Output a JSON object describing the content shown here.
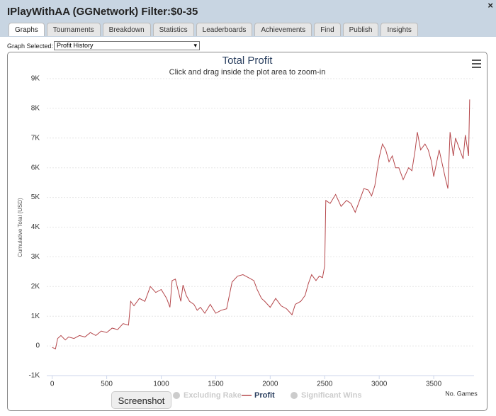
{
  "window": {
    "title": "IPlayWithAA (GGNetwork) Filter:$0-35",
    "close": "×"
  },
  "tabs": [
    "Graphs",
    "Tournaments",
    "Breakdown",
    "Statistics",
    "Leaderboards",
    "Achievements",
    "Find",
    "Publish",
    "Insights"
  ],
  "selected_tab": 0,
  "graph_selector": {
    "label": "Graph Selected:",
    "value": "Profit History"
  },
  "tooltip": "Screenshot",
  "chart_data": {
    "type": "line",
    "title": "Total Profit",
    "subtitle": "Click and drag inside the plot area to zoom-in",
    "y_label": "Cumulative Total (USD)",
    "x_label": "No. Games",
    "xlim": [
      -50,
      3870
    ],
    "ylim": [
      -1000,
      9000
    ],
    "xticks": [
      0,
      500,
      1000,
      1500,
      2000,
      2500,
      3000,
      3500
    ],
    "yticks": [
      {
        "value": -1000,
        "label": "-1K"
      },
      0,
      {
        "value": 1000,
        "label": "1K"
      },
      {
        "value": 2000,
        "label": "2K"
      },
      {
        "value": 3000,
        "label": "3K"
      },
      {
        "value": 4000,
        "label": "4K"
      },
      {
        "value": 5000,
        "label": "5K"
      },
      {
        "value": 6000,
        "label": "6K"
      },
      {
        "value": 7000,
        "label": "7K"
      },
      {
        "value": 8000,
        "label": "8K"
      },
      {
        "value": 9000,
        "label": "9K"
      }
    ],
    "grid": true,
    "x": [
      0,
      30,
      50,
      80,
      120,
      150,
      200,
      250,
      300,
      350,
      400,
      450,
      500,
      550,
      600,
      650,
      700,
      720,
      750,
      800,
      850,
      900,
      950,
      1000,
      1050,
      1080,
      1100,
      1130,
      1150,
      1180,
      1200,
      1230,
      1260,
      1300,
      1330,
      1360,
      1400,
      1450,
      1500,
      1550,
      1600,
      1650,
      1700,
      1750,
      1800,
      1850,
      1880,
      1920,
      1950,
      2000,
      2050,
      2100,
      2150,
      2200,
      2230,
      2280,
      2320,
      2350,
      2380,
      2420,
      2450,
      2480,
      2500,
      2510,
      2550,
      2600,
      2650,
      2700,
      2740,
      2780,
      2820,
      2860,
      2900,
      2930,
      2960,
      3000,
      3030,
      3060,
      3090,
      3120,
      3150,
      3180,
      3220,
      3270,
      3300,
      3330,
      3350,
      3380,
      3420,
      3450,
      3480,
      3500,
      3550,
      3580,
      3610,
      3630,
      3650,
      3680,
      3700,
      3740,
      3770,
      3790,
      3820,
      3830
    ],
    "series": [
      {
        "name": "Excluding Rake",
        "color": "#cccccc",
        "visible": false,
        "marker": "circle"
      },
      {
        "name": "Profit",
        "color": "#b5474b",
        "visible": true,
        "marker": "line",
        "values": [
          -50,
          -100,
          250,
          350,
          200,
          300,
          250,
          350,
          300,
          450,
          350,
          500,
          450,
          600,
          550,
          750,
          700,
          1500,
          1350,
          1600,
          1500,
          2000,
          1800,
          1900,
          1600,
          1300,
          2200,
          2250,
          1950,
          1500,
          2050,
          1700,
          1500,
          1400,
          1200,
          1300,
          1100,
          1400,
          1100,
          1200,
          1250,
          2150,
          2350,
          2400,
          2300,
          2200,
          1900,
          1600,
          1500,
          1300,
          1600,
          1350,
          1250,
          1050,
          1400,
          1500,
          1700,
          2100,
          2400,
          2200,
          2350,
          2300,
          2700,
          4900,
          4800,
          5100,
          4700,
          4900,
          4800,
          4500,
          4900,
          5300,
          5250,
          5050,
          5400,
          6350,
          6800,
          6600,
          6200,
          6400,
          6000,
          6000,
          5600,
          6000,
          5900,
          6600,
          7200,
          6600,
          6800,
          6600,
          6200,
          5700,
          6600,
          6100,
          5600,
          5300,
          7200,
          6400,
          7000,
          6600,
          6300,
          7100,
          6400,
          8300
        ]
      },
      {
        "name": "Significant Wins",
        "color": "#cccccc",
        "visible": false,
        "marker": "circle"
      }
    ]
  }
}
